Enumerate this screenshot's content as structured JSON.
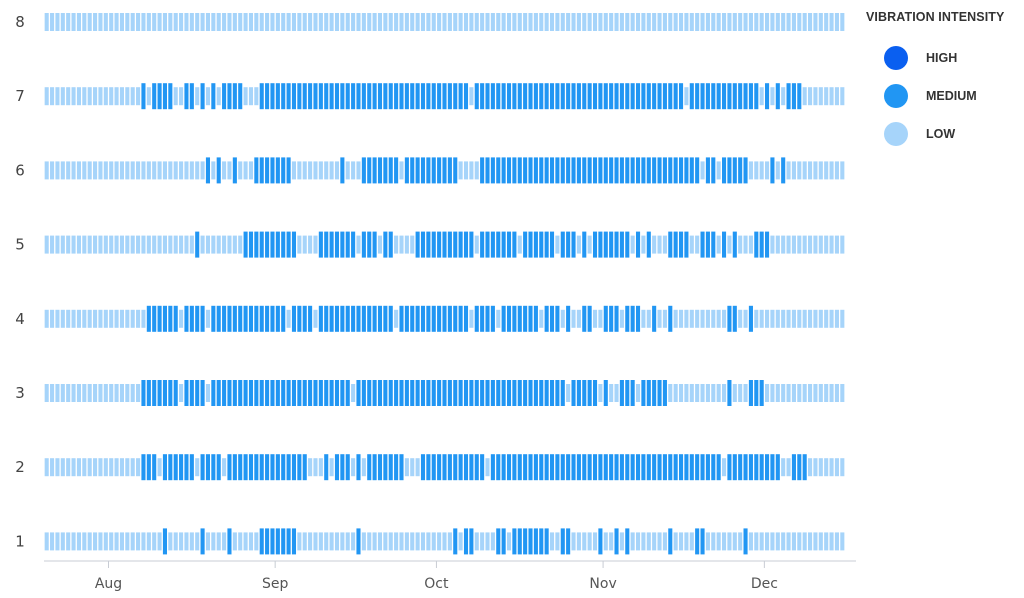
{
  "chart_data": {
    "type": "heatmap",
    "title": "",
    "legend": {
      "title": "VIBRATION INTENSITY",
      "placement": "right",
      "items": [
        {
          "name": "HIGH",
          "color": "#0a5ff0"
        },
        {
          "name": "MEDIUM",
          "color": "#2196f3"
        },
        {
          "name": "LOW",
          "color": "#a6d4fa"
        }
      ]
    },
    "x_axis": {
      "type": "date",
      "range": [
        "2023-07-20",
        "2023-12-15"
      ],
      "ticks": [
        {
          "label": "Aug",
          "date": "2023-08-01"
        },
        {
          "label": "Sep",
          "date": "2023-09-01"
        },
        {
          "label": "Oct",
          "date": "2023-10-01"
        },
        {
          "label": "Nov",
          "date": "2023-11-01"
        },
        {
          "label": "Dec",
          "date": "2023-12-01"
        }
      ]
    },
    "y_axis": {
      "categories": [
        "1",
        "2",
        "3",
        "4",
        "5",
        "6",
        "7",
        "8"
      ]
    },
    "rows": [
      {
        "row": "1",
        "medium_periods": [
          [
            "2023-08-11",
            "2023-08-11"
          ],
          [
            "2023-08-18",
            "2023-08-18"
          ],
          [
            "2023-08-23",
            "2023-08-23"
          ],
          [
            "2023-08-29",
            "2023-09-04"
          ],
          [
            "2023-09-16",
            "2023-09-16"
          ],
          [
            "2023-10-04",
            "2023-10-04"
          ],
          [
            "2023-10-06",
            "2023-10-07"
          ],
          [
            "2023-10-12",
            "2023-10-13"
          ],
          [
            "2023-10-15",
            "2023-10-21"
          ],
          [
            "2023-10-24",
            "2023-10-25"
          ],
          [
            "2023-10-31",
            "2023-10-31"
          ],
          [
            "2023-11-03",
            "2023-11-03"
          ],
          [
            "2023-11-05",
            "2023-11-05"
          ],
          [
            "2023-11-13",
            "2023-11-13"
          ],
          [
            "2023-11-18",
            "2023-11-19"
          ],
          [
            "2023-11-27",
            "2023-11-27"
          ]
        ]
      },
      {
        "row": "2",
        "medium_periods": [
          [
            "2023-08-07",
            "2023-08-09"
          ],
          [
            "2023-08-11",
            "2023-08-16"
          ],
          [
            "2023-08-18",
            "2023-08-21"
          ],
          [
            "2023-08-23",
            "2023-09-06"
          ],
          [
            "2023-09-10",
            "2023-09-10"
          ],
          [
            "2023-09-12",
            "2023-09-14"
          ],
          [
            "2023-09-16",
            "2023-09-16"
          ],
          [
            "2023-09-18",
            "2023-09-24"
          ],
          [
            "2023-09-28",
            "2023-10-09"
          ],
          [
            "2023-10-11",
            "2023-11-22"
          ],
          [
            "2023-11-24",
            "2023-12-03"
          ],
          [
            "2023-12-06",
            "2023-12-08"
          ]
        ]
      },
      {
        "row": "3",
        "medium_periods": [
          [
            "2023-08-07",
            "2023-08-13"
          ],
          [
            "2023-08-15",
            "2023-08-18"
          ],
          [
            "2023-08-20",
            "2023-09-14"
          ],
          [
            "2023-09-16",
            "2023-10-24"
          ],
          [
            "2023-10-26",
            "2023-10-30"
          ],
          [
            "2023-11-01",
            "2023-11-01"
          ],
          [
            "2023-11-04",
            "2023-11-06"
          ],
          [
            "2023-11-08",
            "2023-11-12"
          ],
          [
            "2023-11-24",
            "2023-11-24"
          ],
          [
            "2023-11-28",
            "2023-11-30"
          ]
        ]
      },
      {
        "row": "4",
        "medium_periods": [
          [
            "2023-08-08",
            "2023-08-13"
          ],
          [
            "2023-08-15",
            "2023-08-18"
          ],
          [
            "2023-08-20",
            "2023-09-02"
          ],
          [
            "2023-09-04",
            "2023-09-07"
          ],
          [
            "2023-09-09",
            "2023-09-22"
          ],
          [
            "2023-09-24",
            "2023-10-06"
          ],
          [
            "2023-10-08",
            "2023-10-11"
          ],
          [
            "2023-10-13",
            "2023-10-19"
          ],
          [
            "2023-10-21",
            "2023-10-23"
          ],
          [
            "2023-10-25",
            "2023-10-25"
          ],
          [
            "2023-10-28",
            "2023-10-29"
          ],
          [
            "2023-11-01",
            "2023-11-03"
          ],
          [
            "2023-11-05",
            "2023-11-07"
          ],
          [
            "2023-11-10",
            "2023-11-10"
          ],
          [
            "2023-11-13",
            "2023-11-13"
          ],
          [
            "2023-11-24",
            "2023-11-25"
          ],
          [
            "2023-11-28",
            "2023-11-28"
          ]
        ]
      },
      {
        "row": "5",
        "medium_periods": [
          [
            "2023-08-17",
            "2023-08-17"
          ],
          [
            "2023-08-26",
            "2023-09-04"
          ],
          [
            "2023-09-09",
            "2023-09-15"
          ],
          [
            "2023-09-17",
            "2023-09-19"
          ],
          [
            "2023-09-21",
            "2023-09-22"
          ],
          [
            "2023-09-27",
            "2023-10-07"
          ],
          [
            "2023-10-09",
            "2023-10-15"
          ],
          [
            "2023-10-17",
            "2023-10-22"
          ],
          [
            "2023-10-24",
            "2023-10-26"
          ],
          [
            "2023-10-28",
            "2023-10-28"
          ],
          [
            "2023-10-30",
            "2023-11-05"
          ],
          [
            "2023-11-07",
            "2023-11-07"
          ],
          [
            "2023-11-09",
            "2023-11-09"
          ],
          [
            "2023-11-13",
            "2023-11-16"
          ],
          [
            "2023-11-19",
            "2023-11-21"
          ],
          [
            "2023-11-23",
            "2023-11-23"
          ],
          [
            "2023-11-25",
            "2023-11-25"
          ],
          [
            "2023-11-29",
            "2023-12-01"
          ]
        ]
      },
      {
        "row": "6",
        "medium_periods": [
          [
            "2023-08-19",
            "2023-08-19"
          ],
          [
            "2023-08-21",
            "2023-08-21"
          ],
          [
            "2023-08-24",
            "2023-08-24"
          ],
          [
            "2023-08-28",
            "2023-09-03"
          ],
          [
            "2023-09-13",
            "2023-09-13"
          ],
          [
            "2023-09-17",
            "2023-09-23"
          ],
          [
            "2023-09-25",
            "2023-10-04"
          ],
          [
            "2023-10-09",
            "2023-11-18"
          ],
          [
            "2023-11-20",
            "2023-11-21"
          ],
          [
            "2023-11-23",
            "2023-11-27"
          ],
          [
            "2023-12-02",
            "2023-12-02"
          ],
          [
            "2023-12-04",
            "2023-12-04"
          ]
        ]
      },
      {
        "row": "7",
        "medium_periods": [
          [
            "2023-08-07",
            "2023-08-07"
          ],
          [
            "2023-08-09",
            "2023-08-12"
          ],
          [
            "2023-08-15",
            "2023-08-16"
          ],
          [
            "2023-08-18",
            "2023-08-18"
          ],
          [
            "2023-08-20",
            "2023-08-20"
          ],
          [
            "2023-08-22",
            "2023-08-25"
          ],
          [
            "2023-08-29",
            "2023-10-06"
          ],
          [
            "2023-10-08",
            "2023-11-15"
          ],
          [
            "2023-11-17",
            "2023-11-29"
          ],
          [
            "2023-12-01",
            "2023-12-01"
          ],
          [
            "2023-12-03",
            "2023-12-03"
          ],
          [
            "2023-12-05",
            "2023-12-07"
          ]
        ]
      },
      {
        "row": "8",
        "medium_periods": []
      }
    ]
  }
}
